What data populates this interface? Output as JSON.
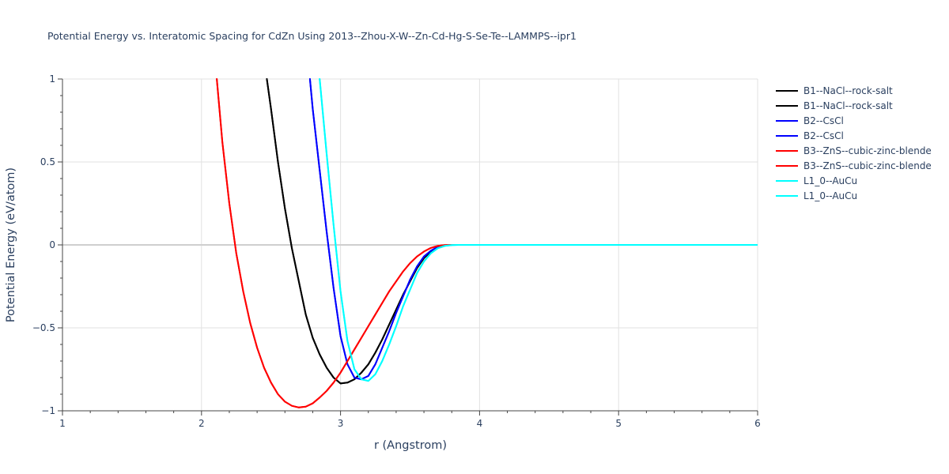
{
  "chart_data": {
    "type": "line",
    "title": "Potential Energy vs. Interatomic Spacing for CdZn Using 2013--Zhou-X-W--Zn-Cd-Hg-S-Se-Te--LAMMPS--ipr1",
    "xlabel": "r (Angstrom)",
    "ylabel": "Potential Energy (eV/atom)",
    "xlim": [
      1,
      6
    ],
    "ylim": [
      -1,
      1
    ],
    "xticks": [
      1,
      2,
      3,
      4,
      5,
      6
    ],
    "yticks": [
      -1,
      -0.5,
      0,
      0.5,
      1
    ],
    "ytick_labels": [
      "−1",
      "−0.5",
      "0",
      "0.5",
      "1"
    ],
    "grid": true,
    "legend_position": "right",
    "series": [
      {
        "name": "B1--NaCl--rock-salt",
        "color": "#000000",
        "x": [
          2.47,
          2.5,
          2.55,
          2.6,
          2.65,
          2.7,
          2.75,
          2.8,
          2.85,
          2.9,
          2.95,
          3.0,
          3.05,
          3.1,
          3.15,
          3.2,
          3.25,
          3.3,
          3.35,
          3.4,
          3.45,
          3.5,
          3.55,
          3.6,
          3.65,
          3.7,
          3.75,
          3.8,
          3.85,
          3.9,
          4.0,
          4.5,
          5.0,
          5.5,
          6.0
        ],
        "y": [
          1.0,
          0.82,
          0.5,
          0.22,
          -0.02,
          -0.22,
          -0.42,
          -0.56,
          -0.66,
          -0.74,
          -0.8,
          -0.835,
          -0.83,
          -0.81,
          -0.77,
          -0.72,
          -0.65,
          -0.57,
          -0.48,
          -0.39,
          -0.3,
          -0.22,
          -0.14,
          -0.08,
          -0.04,
          -0.015,
          -0.004,
          0.0,
          0.0,
          0.0,
          0.0,
          0.0,
          0.0,
          0.0,
          0.0
        ]
      },
      {
        "name": "B1--NaCl--rock-salt",
        "color": "#000000",
        "x": [
          2.47,
          2.5,
          2.55,
          2.6,
          2.65,
          2.7,
          2.75,
          2.8,
          2.85,
          2.9,
          2.95,
          3.0,
          3.05,
          3.1,
          3.15,
          3.2,
          3.25,
          3.3,
          3.35,
          3.4,
          3.45,
          3.5,
          3.55,
          3.6,
          3.65,
          3.7,
          3.75,
          3.8,
          3.85,
          3.9,
          4.0,
          4.5,
          5.0,
          5.5,
          6.0
        ],
        "y": [
          1.0,
          0.82,
          0.5,
          0.22,
          -0.02,
          -0.22,
          -0.42,
          -0.56,
          -0.66,
          -0.74,
          -0.8,
          -0.835,
          -0.83,
          -0.81,
          -0.77,
          -0.72,
          -0.65,
          -0.57,
          -0.48,
          -0.39,
          -0.3,
          -0.22,
          -0.14,
          -0.08,
          -0.04,
          -0.015,
          -0.004,
          0.0,
          0.0,
          0.0,
          0.0,
          0.0,
          0.0,
          0.0,
          0.0
        ]
      },
      {
        "name": "B2--CsCl",
        "color": "#0000ff",
        "x": [
          2.78,
          2.8,
          2.85,
          2.9,
          2.95,
          3.0,
          3.05,
          3.1,
          3.15,
          3.2,
          3.25,
          3.3,
          3.35,
          3.4,
          3.45,
          3.5,
          3.55,
          3.6,
          3.65,
          3.7,
          3.75,
          3.8,
          3.85,
          3.9,
          4.0,
          4.5,
          5.0,
          5.5,
          6.0
        ],
        "y": [
          1.0,
          0.82,
          0.45,
          0.08,
          -0.26,
          -0.55,
          -0.72,
          -0.8,
          -0.81,
          -0.79,
          -0.72,
          -0.62,
          -0.52,
          -0.41,
          -0.31,
          -0.21,
          -0.13,
          -0.07,
          -0.035,
          -0.012,
          -0.003,
          0.0,
          0.0,
          0.0,
          0.0,
          0.0,
          0.0,
          0.0,
          0.0
        ]
      },
      {
        "name": "B2--CsCl",
        "color": "#0000ff",
        "x": [
          2.78,
          2.8,
          2.85,
          2.9,
          2.95,
          3.0,
          3.05,
          3.1,
          3.15,
          3.2,
          3.25,
          3.3,
          3.35,
          3.4,
          3.45,
          3.5,
          3.55,
          3.6,
          3.65,
          3.7,
          3.75,
          3.8,
          3.85,
          3.9,
          4.0,
          4.5,
          5.0,
          5.5,
          6.0
        ],
        "y": [
          1.0,
          0.82,
          0.45,
          0.08,
          -0.26,
          -0.55,
          -0.72,
          -0.8,
          -0.81,
          -0.79,
          -0.72,
          -0.62,
          -0.52,
          -0.41,
          -0.31,
          -0.21,
          -0.13,
          -0.07,
          -0.035,
          -0.012,
          -0.003,
          0.0,
          0.0,
          0.0,
          0.0,
          0.0,
          0.0,
          0.0,
          0.0
        ]
      },
      {
        "name": "B3--ZnS--cubic-zinc-blende",
        "color": "#ff0000",
        "x": [
          2.11,
          2.15,
          2.2,
          2.25,
          2.3,
          2.35,
          2.4,
          2.45,
          2.5,
          2.55,
          2.6,
          2.65,
          2.7,
          2.75,
          2.8,
          2.85,
          2.9,
          2.95,
          3.0,
          3.05,
          3.1,
          3.15,
          3.2,
          3.25,
          3.3,
          3.35,
          3.4,
          3.45,
          3.5,
          3.55,
          3.6,
          3.65,
          3.7,
          3.75,
          3.8,
          3.85,
          3.9,
          4.0,
          4.5,
          5.0,
          5.5,
          6.0
        ],
        "y": [
          1.0,
          0.62,
          0.25,
          -0.05,
          -0.28,
          -0.47,
          -0.62,
          -0.74,
          -0.83,
          -0.9,
          -0.945,
          -0.97,
          -0.98,
          -0.975,
          -0.955,
          -0.92,
          -0.88,
          -0.83,
          -0.77,
          -0.7,
          -0.63,
          -0.56,
          -0.49,
          -0.42,
          -0.35,
          -0.28,
          -0.22,
          -0.16,
          -0.11,
          -0.07,
          -0.04,
          -0.018,
          -0.006,
          -0.001,
          0.0,
          0.0,
          0.0,
          0.0,
          0.0,
          0.0,
          0.0,
          0.0
        ]
      },
      {
        "name": "B3--ZnS--cubic-zinc-blende",
        "color": "#ff0000",
        "x": [
          2.11,
          2.15,
          2.2,
          2.25,
          2.3,
          2.35,
          2.4,
          2.45,
          2.5,
          2.55,
          2.6,
          2.65,
          2.7,
          2.75,
          2.8,
          2.85,
          2.9,
          2.95,
          3.0,
          3.05,
          3.1,
          3.15,
          3.2,
          3.25,
          3.3,
          3.35,
          3.4,
          3.45,
          3.5,
          3.55,
          3.6,
          3.65,
          3.7,
          3.75,
          3.8,
          3.85,
          3.9,
          4.0,
          4.5,
          5.0,
          5.5,
          6.0
        ],
        "y": [
          1.0,
          0.62,
          0.25,
          -0.05,
          -0.28,
          -0.47,
          -0.62,
          -0.74,
          -0.83,
          -0.9,
          -0.945,
          -0.97,
          -0.98,
          -0.975,
          -0.955,
          -0.92,
          -0.88,
          -0.83,
          -0.77,
          -0.7,
          -0.63,
          -0.56,
          -0.49,
          -0.42,
          -0.35,
          -0.28,
          -0.22,
          -0.16,
          -0.11,
          -0.07,
          -0.04,
          -0.018,
          -0.006,
          -0.001,
          0.0,
          0.0,
          0.0,
          0.0,
          0.0,
          0.0,
          0.0,
          0.0
        ]
      },
      {
        "name": "L1_0--AuCu",
        "color": "#00ffff",
        "x": [
          2.85,
          2.9,
          2.95,
          3.0,
          3.05,
          3.1,
          3.15,
          3.2,
          3.25,
          3.3,
          3.35,
          3.4,
          3.45,
          3.5,
          3.55,
          3.6,
          3.65,
          3.7,
          3.75,
          3.8,
          3.85,
          3.9,
          4.0,
          4.5,
          5.0,
          5.5,
          6.0
        ],
        "y": [
          1.0,
          0.55,
          0.12,
          -0.28,
          -0.58,
          -0.75,
          -0.81,
          -0.82,
          -0.78,
          -0.7,
          -0.6,
          -0.49,
          -0.37,
          -0.27,
          -0.17,
          -0.1,
          -0.05,
          -0.02,
          -0.006,
          -0.001,
          0.0,
          0.0,
          0.0,
          0.0,
          0.0,
          0.0,
          0.0
        ]
      },
      {
        "name": "L1_0--AuCu",
        "color": "#00ffff",
        "x": [
          2.85,
          2.9,
          2.95,
          3.0,
          3.05,
          3.1,
          3.15,
          3.2,
          3.25,
          3.3,
          3.35,
          3.4,
          3.45,
          3.5,
          3.55,
          3.6,
          3.65,
          3.7,
          3.75,
          3.8,
          3.85,
          3.9,
          4.0,
          4.5,
          5.0,
          5.5,
          6.0
        ],
        "y": [
          1.0,
          0.55,
          0.12,
          -0.28,
          -0.58,
          -0.75,
          -0.81,
          -0.82,
          -0.78,
          -0.7,
          -0.6,
          -0.49,
          -0.37,
          -0.27,
          -0.17,
          -0.1,
          -0.05,
          -0.02,
          -0.006,
          -0.001,
          0.0,
          0.0,
          0.0,
          0.0,
          0.0,
          0.0,
          0.0
        ]
      }
    ]
  }
}
